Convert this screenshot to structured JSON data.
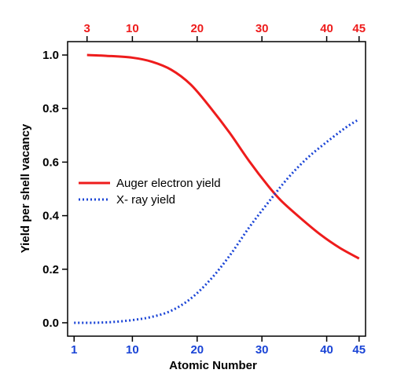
{
  "colors": {
    "auger": "#ee1c1c",
    "xray": "#1a44d6",
    "axis": "#000000"
  },
  "chart_data": {
    "type": "line",
    "xlabel": "Atomic Number",
    "ylabel": "Yield per shell vacancy",
    "xlim": [
      0,
      46
    ],
    "ylim": [
      -0.05,
      1.05
    ],
    "yticks": [
      {
        "value": 0.0,
        "label": "0.0"
      },
      {
        "value": 0.2,
        "label": "0.2"
      },
      {
        "value": 0.4,
        "label": "0.4"
      },
      {
        "value": 0.6,
        "label": "0.6"
      },
      {
        "value": 0.8,
        "label": "0.8"
      },
      {
        "value": 1.0,
        "label": "1.0"
      }
    ],
    "bottom_ticks": [
      {
        "value": 1,
        "label": "1"
      },
      {
        "value": 10,
        "label": "10"
      },
      {
        "value": 20,
        "label": "20"
      },
      {
        "value": 30,
        "label": "30"
      },
      {
        "value": 40,
        "label": "40"
      },
      {
        "value": 45,
        "label": "45"
      }
    ],
    "top_ticks": [
      {
        "value": 3,
        "label": "3"
      },
      {
        "value": 10,
        "label": "10"
      },
      {
        "value": 20,
        "label": "20"
      },
      {
        "value": 30,
        "label": "30"
      },
      {
        "value": 40,
        "label": "40"
      },
      {
        "value": 45,
        "label": "45"
      }
    ],
    "legend_position": "center-left",
    "series": [
      {
        "name": "Auger electron yield",
        "style": "solid",
        "color": "#ee1c1c",
        "x": [
          3,
          6,
          10,
          13,
          16,
          19,
          22,
          25,
          28,
          31,
          33,
          36,
          39,
          42,
          45
        ],
        "y": [
          1.0,
          0.997,
          0.99,
          0.975,
          0.945,
          0.89,
          0.805,
          0.71,
          0.605,
          0.51,
          0.455,
          0.39,
          0.33,
          0.28,
          0.24
        ]
      },
      {
        "name": "X- ray yield",
        "style": "dotted",
        "color": "#1a44d6",
        "x": [
          1,
          4,
          7,
          10,
          13,
          16,
          19,
          22,
          25,
          28,
          31,
          34,
          37,
          40,
          43,
          45
        ],
        "y": [
          0.0,
          0.0,
          0.003,
          0.01,
          0.022,
          0.045,
          0.09,
          0.16,
          0.25,
          0.355,
          0.45,
          0.54,
          0.615,
          0.675,
          0.73,
          0.76
        ]
      }
    ]
  }
}
